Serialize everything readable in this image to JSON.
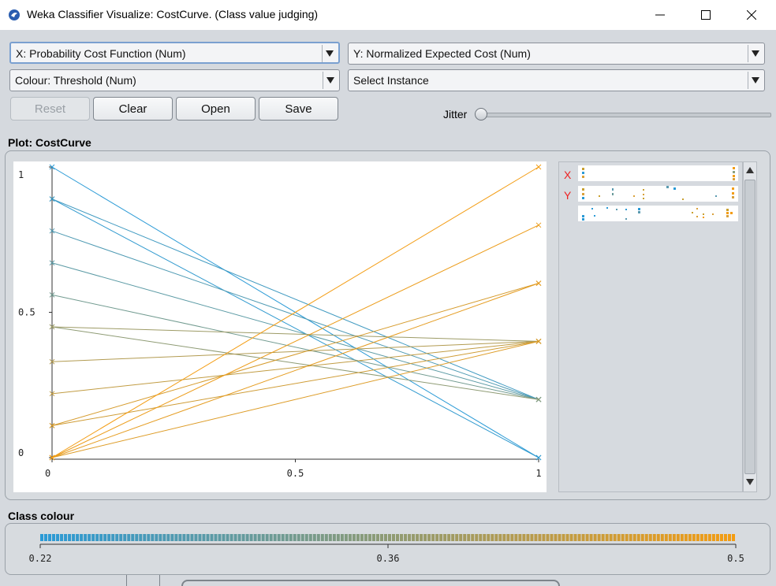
{
  "window": {
    "title": "Weka Classifier Visualize: CostCurve. (Class value judging)"
  },
  "controls": {
    "x_axis": "X: Probability Cost Function (Num)",
    "y_axis": "Y: Normalized Expected Cost (Num)",
    "colour": "Colour: Threshold (Num)",
    "instance": "Select Instance",
    "buttons": {
      "reset": "Reset",
      "clear": "Clear",
      "open": "Open",
      "save": "Save"
    },
    "jitter_label": "Jitter",
    "jitter_level": 0
  },
  "plot": {
    "title": "Plot: CostCurve"
  },
  "attribute_panel": {
    "x_label": "X",
    "y_label": "Y"
  },
  "class_colour": {
    "title": "Class colour",
    "ticks": [
      "0.22",
      "0.36",
      "0.5"
    ],
    "min": 0.22,
    "max": 0.5
  },
  "colors": {
    "low": "#2a9ad6",
    "high": "#f39c12"
  },
  "chart_data": {
    "type": "line",
    "xlabel": "",
    "ylabel": "",
    "xlim": [
      0,
      1
    ],
    "ylim": [
      0,
      1
    ],
    "xticks": [
      "0",
      "0.5",
      "1"
    ],
    "yticks": [
      "0",
      "0.5",
      "1"
    ],
    "series": [
      {
        "x": [
          0,
          1
        ],
        "y": [
          1.0,
          0.0
        ],
        "threshold": 0.22
      },
      {
        "x": [
          0,
          1
        ],
        "y": [
          0.89,
          0.0
        ],
        "threshold": 0.23
      },
      {
        "x": [
          0,
          1
        ],
        "y": [
          0.89,
          0.2
        ],
        "threshold": 0.25
      },
      {
        "x": [
          0,
          1
        ],
        "y": [
          0.78,
          0.2
        ],
        "threshold": 0.27
      },
      {
        "x": [
          0,
          1
        ],
        "y": [
          0.67,
          0.2
        ],
        "threshold": 0.29
      },
      {
        "x": [
          0,
          1
        ],
        "y": [
          0.56,
          0.2
        ],
        "threshold": 0.32
      },
      {
        "x": [
          0,
          1
        ],
        "y": [
          0.45,
          0.2
        ],
        "threshold": 0.36
      },
      {
        "x": [
          0,
          1
        ],
        "y": [
          0.45,
          0.4
        ],
        "threshold": 0.38
      },
      {
        "x": [
          0,
          1
        ],
        "y": [
          0.33,
          0.4
        ],
        "threshold": 0.41
      },
      {
        "x": [
          0,
          1
        ],
        "y": [
          0.22,
          0.4
        ],
        "threshold": 0.43
      },
      {
        "x": [
          0,
          1
        ],
        "y": [
          0.11,
          0.4
        ],
        "threshold": 0.45
      },
      {
        "x": [
          0,
          1
        ],
        "y": [
          0.11,
          0.6
        ],
        "threshold": 0.46
      },
      {
        "x": [
          0,
          1
        ],
        "y": [
          0.0,
          0.4
        ],
        "threshold": 0.47
      },
      {
        "x": [
          0,
          1
        ],
        "y": [
          0.0,
          0.6
        ],
        "threshold": 0.48
      },
      {
        "x": [
          0,
          1
        ],
        "y": [
          0.0,
          0.8
        ],
        "threshold": 0.49
      },
      {
        "x": [
          0,
          1
        ],
        "y": [
          0.0,
          1.0
        ],
        "threshold": 0.5
      }
    ]
  }
}
